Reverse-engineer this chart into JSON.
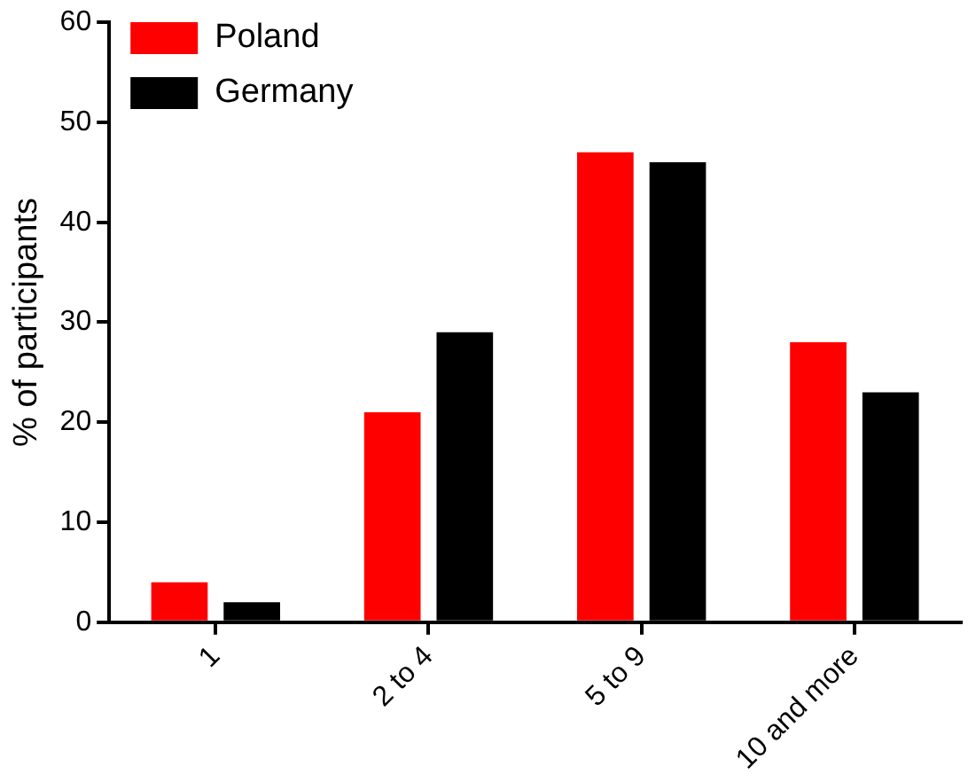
{
  "chart_data": {
    "type": "bar",
    "ylabel": "% of participants",
    "categories": [
      "1",
      "2 to 4",
      "5 to 9",
      "10 and more"
    ],
    "series": [
      {
        "name": "Poland",
        "color": "#ff0000",
        "values": [
          4,
          21,
          47,
          28
        ]
      },
      {
        "name": "Germany",
        "color": "#000000",
        "values": [
          2,
          29,
          46,
          23
        ]
      }
    ],
    "ylim": [
      0,
      60
    ],
    "yticks": [
      0,
      10,
      20,
      30,
      40,
      50,
      60
    ],
    "grid": false,
    "legend": "top left"
  }
}
